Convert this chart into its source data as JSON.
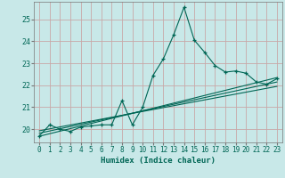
{
  "xlabel": "Humidex (Indice chaleur)",
  "bg_color": "#c8e8e8",
  "grid_color": "#c8a8a8",
  "line_color": "#006655",
  "xlim": [
    -0.5,
    23.5
  ],
  "ylim": [
    19.4,
    25.8
  ],
  "yticks": [
    20,
    21,
    22,
    23,
    24,
    25
  ],
  "xticks": [
    0,
    1,
    2,
    3,
    4,
    5,
    6,
    7,
    8,
    9,
    10,
    11,
    12,
    13,
    14,
    15,
    16,
    17,
    18,
    19,
    20,
    21,
    22,
    23
  ],
  "main_x": [
    0,
    1,
    2,
    3,
    4,
    5,
    6,
    7,
    8,
    9,
    10,
    11,
    12,
    13,
    14,
    15,
    16,
    17,
    18,
    19,
    20,
    21,
    22,
    23
  ],
  "main_y": [
    19.7,
    20.2,
    20.0,
    19.9,
    20.1,
    20.15,
    20.2,
    20.2,
    21.3,
    20.2,
    21.0,
    22.45,
    23.2,
    24.3,
    25.55,
    24.05,
    23.5,
    22.9,
    22.6,
    22.65,
    22.55,
    22.15,
    22.05,
    22.3
  ],
  "trend_lines": [
    {
      "x": [
        0,
        23
      ],
      "y": [
        19.68,
        22.35
      ]
    },
    {
      "x": [
        0,
        23
      ],
      "y": [
        19.82,
        22.15
      ]
    },
    {
      "x": [
        0,
        23
      ],
      "y": [
        19.93,
        21.95
      ]
    }
  ]
}
